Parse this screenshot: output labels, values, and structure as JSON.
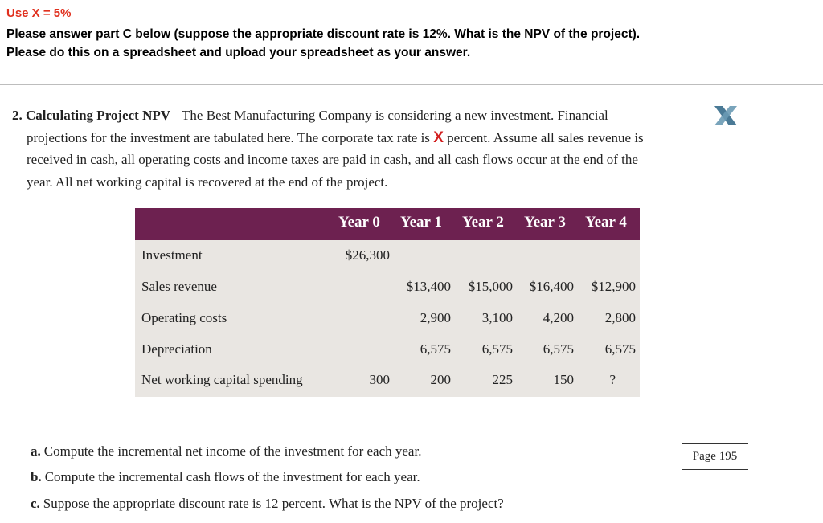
{
  "header": {
    "use_x": "Use X = 5%",
    "line1": "Please answer part C below (suppose the appropriate discount rate is 12%.  What is the NPV of the project).",
    "line2": "Please do this on a spreadsheet and upload your spreadsheet as your answer."
  },
  "problem": {
    "number": "2.",
    "title": "Calculating Project NPV",
    "text_a": "The Best Manufacturing Company is considering a new investment. Financial",
    "text_b": "projections for the investment are tabulated here. The corporate tax rate is",
    "x_mark": "X",
    "text_c": "percent. Assume all sales revenue is",
    "text_d": "received in cash, all operating costs and income taxes are paid in cash, and all cash flows occur at the end of the",
    "text_e": "year. All net working capital is recovered at the end of the project."
  },
  "table": {
    "headers": [
      "Year 0",
      "Year 1",
      "Year 2",
      "Year 3",
      "Year 4"
    ],
    "rows": [
      {
        "label": "Investment",
        "values": [
          "$26,300",
          "",
          "",
          "",
          ""
        ]
      },
      {
        "label": "Sales revenue",
        "values": [
          "",
          "$13,400",
          "$15,000",
          "$16,400",
          "$12,900"
        ]
      },
      {
        "label": "Operating costs",
        "values": [
          "",
          "2,900",
          "3,100",
          "4,200",
          "2,800"
        ]
      },
      {
        "label": "Depreciation",
        "values": [
          "",
          "6,575",
          "6,575",
          "6,575",
          "6,575"
        ]
      },
      {
        "label": "Net working capital spending",
        "values": [
          "300",
          "200",
          "225",
          "150",
          "?"
        ]
      }
    ]
  },
  "questions": [
    {
      "label": "a.",
      "text": "Compute the incremental net income of the investment for each year."
    },
    {
      "label": "b.",
      "text": "Compute the incremental cash flows of the investment for each year."
    },
    {
      "label": "c.",
      "text": "Suppose the appropriate discount rate is 12 percent. What is the NPV of the project?"
    }
  ],
  "page_label": "Page 195",
  "colors": {
    "accent_red": "#e0301e",
    "table_header": "#6d2150",
    "table_body": "#e9e6e2"
  }
}
